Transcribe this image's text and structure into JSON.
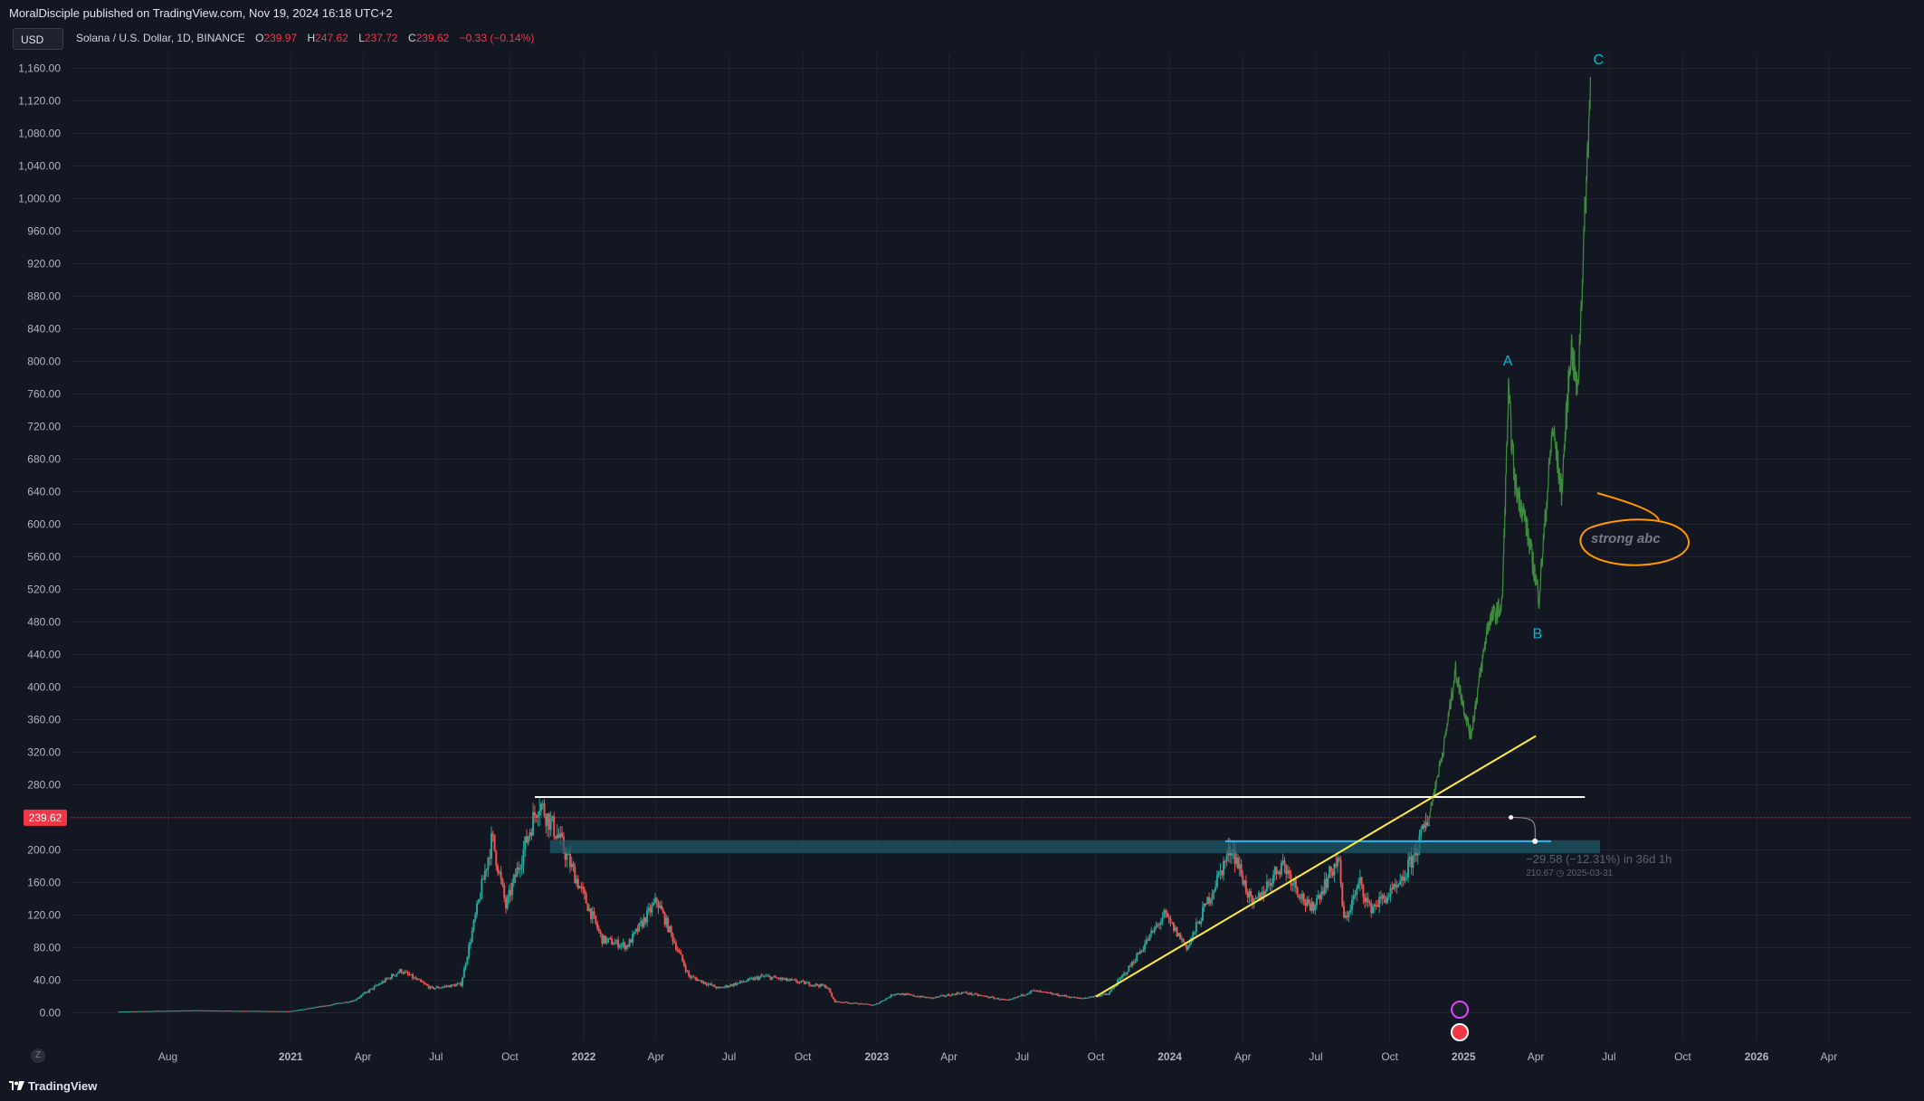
{
  "header": {
    "publisher": "MoralDisciple published on TradingView.com, Nov 19, 2024 16:18 UTC+2"
  },
  "toolbar": {
    "currency": "USD"
  },
  "legend": {
    "symbol": "Solana / U.S. Dollar, 1D, BINANCE",
    "o_label": "O",
    "o_value": "239.97",
    "h_label": "H",
    "h_value": "247.62",
    "l_label": "L",
    "l_value": "237.72",
    "c_label": "C",
    "c_value": "239.62",
    "change": "−0.33 (−0.14%)"
  },
  "footer": {
    "brand": "TradingView",
    "zoom_label": "Z"
  },
  "colors": {
    "background": "#131722",
    "grid": "#1f2430",
    "axis_text": "#b2b5be",
    "up": "#26a69a",
    "down": "#ef5350",
    "projection": "#3d8b3d",
    "resistance": "#ffffff",
    "support_zone": "#1e5c6b",
    "trendline": "#ffeb3b",
    "price_label": "#f23645",
    "wave_label": "#00bcd4",
    "note": "#ff9800",
    "measure": "#2196f3"
  },
  "chart_data": {
    "type": "candlestick",
    "title": "Solana / U.S. Dollar, 1D, BINANCE",
    "ylim": [
      -30,
      1200
    ],
    "y_ticks": [
      "0.00",
      "40.00",
      "80.00",
      "120.00",
      "160.00",
      "200.00",
      "240.00",
      "280.00",
      "320.00",
      "360.00",
      "400.00",
      "440.00",
      "480.00",
      "520.00",
      "560.00",
      "600.00",
      "640.00",
      "680.00",
      "720.00",
      "760.00",
      "800.00",
      "840.00",
      "880.00",
      "920.00",
      "960.00",
      "1,000.00",
      "1,040.00",
      "1,080.00",
      "1,120.00",
      "1,160.00"
    ],
    "x_ticks": [
      "Aug",
      "2021",
      "Apr",
      "Jul",
      "Oct",
      "2022",
      "Apr",
      "Jul",
      "Oct",
      "2023",
      "Apr",
      "Jul",
      "Oct",
      "2024",
      "Apr",
      "Jul",
      "Oct",
      "2025",
      "Apr",
      "Jul",
      "Oct",
      "2026",
      "Apr"
    ],
    "current_price": "239.62",
    "price_anchors": [
      {
        "date": "2020-06-01",
        "value": 1.5
      },
      {
        "date": "2020-09-01",
        "value": 3
      },
      {
        "date": "2020-12-31",
        "value": 1.8
      },
      {
        "date": "2021-02-15",
        "value": 9
      },
      {
        "date": "2021-03-20",
        "value": 15
      },
      {
        "date": "2021-05-18",
        "value": 52
      },
      {
        "date": "2021-06-25",
        "value": 30
      },
      {
        "date": "2021-08-01",
        "value": 35
      },
      {
        "date": "2021-09-09",
        "value": 215
      },
      {
        "date": "2021-09-26",
        "value": 130
      },
      {
        "date": "2021-11-06",
        "value": 260
      },
      {
        "date": "2021-12-01",
        "value": 215
      },
      {
        "date": "2022-01-24",
        "value": 90
      },
      {
        "date": "2022-02-24",
        "value": 82
      },
      {
        "date": "2022-04-02",
        "value": 138
      },
      {
        "date": "2022-05-12",
        "value": 45
      },
      {
        "date": "2022-06-18",
        "value": 30
      },
      {
        "date": "2022-08-13",
        "value": 45
      },
      {
        "date": "2022-10-31",
        "value": 32
      },
      {
        "date": "2022-11-09",
        "value": 14
      },
      {
        "date": "2022-12-29",
        "value": 9.5
      },
      {
        "date": "2023-01-24",
        "value": 24
      },
      {
        "date": "2023-03-10",
        "value": 18
      },
      {
        "date": "2023-04-18",
        "value": 25
      },
      {
        "date": "2023-06-14",
        "value": 15
      },
      {
        "date": "2023-07-14",
        "value": 27
      },
      {
        "date": "2023-09-11",
        "value": 17.5
      },
      {
        "date": "2023-10-16",
        "value": 23
      },
      {
        "date": "2023-11-11",
        "value": 55
      },
      {
        "date": "2023-12-25",
        "value": 120
      },
      {
        "date": "2024-01-23",
        "value": 80
      },
      {
        "date": "2024-03-18",
        "value": 205
      },
      {
        "date": "2024-04-13",
        "value": 130
      },
      {
        "date": "2024-05-20",
        "value": 185
      },
      {
        "date": "2024-06-24",
        "value": 125
      },
      {
        "date": "2024-07-29",
        "value": 190
      },
      {
        "date": "2024-08-05",
        "value": 112
      },
      {
        "date": "2024-08-25",
        "value": 160
      },
      {
        "date": "2024-09-06",
        "value": 128
      },
      {
        "date": "2024-10-14",
        "value": 155
      },
      {
        "date": "2024-11-11",
        "value": 220
      },
      {
        "date": "2024-11-19",
        "value": 239.62
      }
    ],
    "projection_anchors": [
      {
        "date": "2024-11-19",
        "value": 240
      },
      {
        "date": "2024-12-08",
        "value": 330
      },
      {
        "date": "2024-12-22",
        "value": 420
      },
      {
        "date": "2025-01-10",
        "value": 340
      },
      {
        "date": "2025-02-01",
        "value": 480
      },
      {
        "date": "2025-02-18",
        "value": 500
      },
      {
        "date": "2025-02-26",
        "value": 760
      },
      {
        "date": "2025-03-06",
        "value": 650
      },
      {
        "date": "2025-03-18",
        "value": 610
      },
      {
        "date": "2025-04-05",
        "value": 510
      },
      {
        "date": "2025-04-22",
        "value": 720
      },
      {
        "date": "2025-05-03",
        "value": 640
      },
      {
        "date": "2025-05-15",
        "value": 820
      },
      {
        "date": "2025-05-23",
        "value": 760
      },
      {
        "date": "2025-06-08",
        "value": 1140
      }
    ],
    "annotations": {
      "resistance": {
        "from": "2021-11-01",
        "to": "2025-06-01",
        "value": 265
      },
      "support_zone": {
        "from": "2021-11-20",
        "to": "2025-06-20",
        "low": 196,
        "high": 212
      },
      "trendline": {
        "from_date": "2023-10-01",
        "from_value": 20,
        "to_date": "2025-04-01",
        "to_value": 340
      },
      "measure": {
        "from_date": "2025-03-01",
        "from_value": 240,
        "to_date": "2025-03-31",
        "to_value": 210.67,
        "text": "−29.58 (−12.31%) in 36d 1h",
        "sub": "210.67",
        "date": "2025-03-31"
      },
      "waves": [
        {
          "label": "A",
          "date": "2025-02-25",
          "value": 795
        },
        {
          "label": "B",
          "date": "2025-04-03",
          "value": 460
        },
        {
          "label": "C",
          "date": "2025-06-18",
          "value": 1165
        }
      ],
      "note": "strong abc"
    }
  }
}
